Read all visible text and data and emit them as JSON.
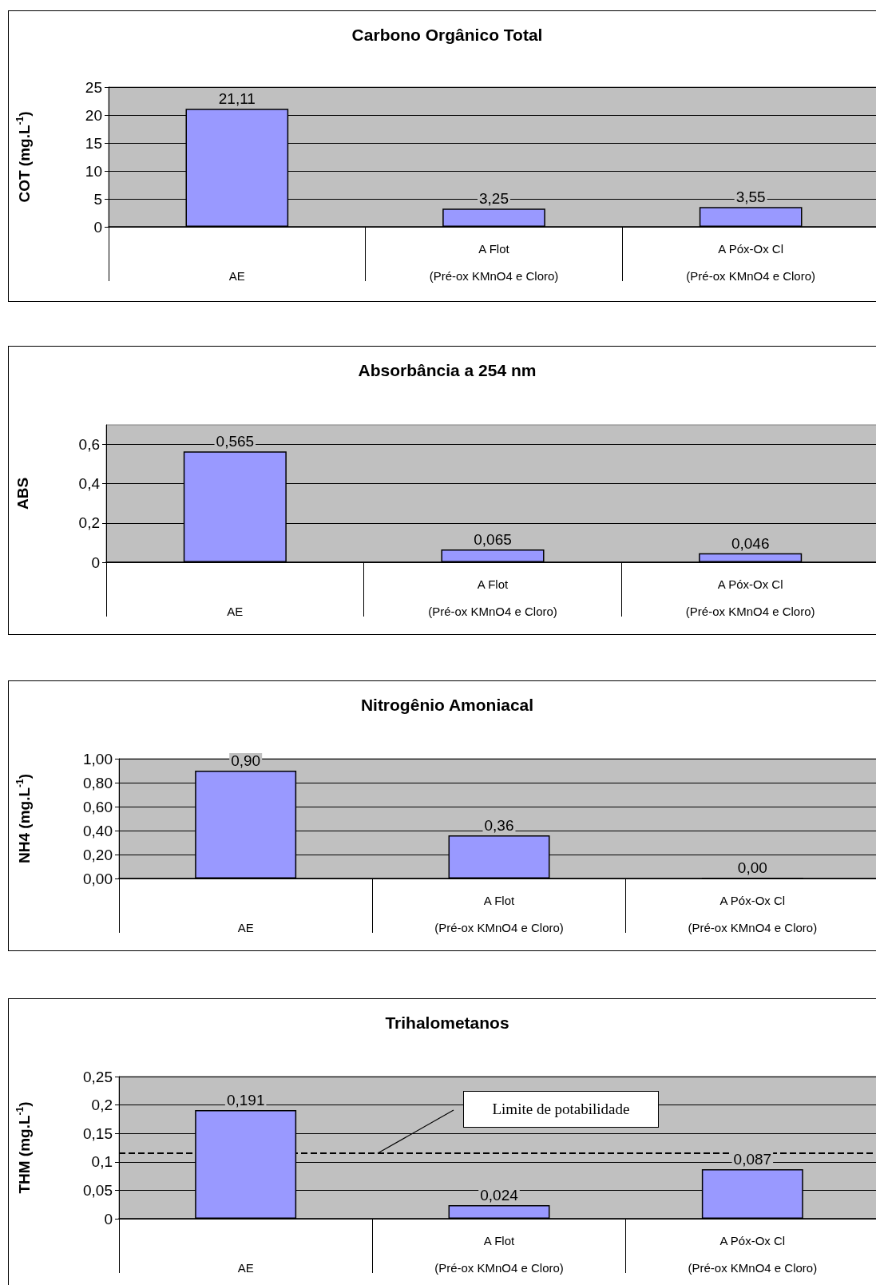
{
  "chart_data": [
    {
      "type": "bar",
      "title": "Carbono Orgânico Total",
      "ylabel": "COT (mg.L$^{-1}$)",
      "categories": [
        "AE",
        "A Flot\n(Pré-ox KMnO4 e Cloro)",
        "A Póx-Ox Cl\n(Pré-ox KMnO4 e Cloro)"
      ],
      "values": [
        21.11,
        3.25,
        3.55
      ],
      "value_labels": [
        "21,11",
        "3,25",
        "3,55"
      ],
      "color": "#9999ff",
      "ylim": [
        0,
        25
      ],
      "yticks": [
        0,
        5,
        10,
        15,
        20,
        25
      ],
      "grid": "y"
    },
    {
      "type": "bar",
      "title": "Absorbância a 254 nm",
      "ylabel": "ABS",
      "categories": [
        "AE",
        "A Flot\n(Pré-ox KMnO4 e Cloro)",
        "A Póx-Ox Cl\n(Pré-ox KMnO4 e Cloro)"
      ],
      "values": [
        0.565,
        0.065,
        0.046
      ],
      "value_labels": [
        "0,565",
        "0,065",
        "0,046"
      ],
      "color": "#9999ff",
      "ylim": [
        0,
        0.7
      ],
      "yticks": [
        0,
        {
          "value": 0.2,
          "label": "0,2"
        },
        {
          "value": 0.4,
          "label": "0,4"
        },
        {
          "value": 0.6,
          "label": "0,6"
        }
      ],
      "grid": "y"
    },
    {
      "type": "bar",
      "title": "Nitrogênio Amoniacal",
      "ylabel": "NH4 (mg.L$^{-1}$)",
      "categories": [
        "AE",
        "A Flot\n(Pré-ox KMnO4 e Cloro)",
        "A Póx-Ox Cl\n(Pré-ox KMnO4 e Cloro)"
      ],
      "values": [
        0.9,
        0.36,
        0
      ],
      "value_labels": [
        "0,90",
        "0,36",
        "0,00"
      ],
      "color": "#9999ff",
      "ylim": [
        0,
        1
      ],
      "yticks": [
        {
          "value": 0,
          "label": "0,00"
        },
        {
          "value": 0.2,
          "label": "0,20"
        },
        {
          "value": 0.4,
          "label": "0,40"
        },
        {
          "value": 0.6,
          "label": "0,60"
        },
        {
          "value": 0.8,
          "label": "0,80"
        },
        {
          "value": 1,
          "label": "1,00"
        }
      ],
      "grid": "y"
    },
    {
      "type": "bar",
      "title": "Trihalometanos",
      "ylabel": "THM (mg.L$^{-1}$)",
      "categories": [
        "AE",
        "A Flot\n(Pré-ox KMnO4 e Cloro)",
        "A Póx-Ox Cl\n(Pré-ox KMnO4 e Cloro)"
      ],
      "values": [
        0.191,
        0.024,
        0.087
      ],
      "value_labels": [
        "0,191",
        "0,024",
        "0,087"
      ],
      "color": "#9999ff",
      "ylim": [
        0,
        0.25
      ],
      "yticks": [
        0,
        {
          "value": 0.05,
          "label": "0,05"
        },
        {
          "value": 0.1,
          "label": "0,1"
        },
        {
          "value": 0.15,
          "label": "0,15"
        },
        {
          "value": 0.2,
          "label": "0,2"
        },
        {
          "value": 0.25,
          "label": "0,25"
        }
      ],
      "grid": "y",
      "ref_lines": [
        {
          "axis": "y",
          "value": 0.115,
          "label": "Limite de potabilidade",
          "color": "#000000",
          "line_style": "dashed"
        }
      ]
    }
  ]
}
